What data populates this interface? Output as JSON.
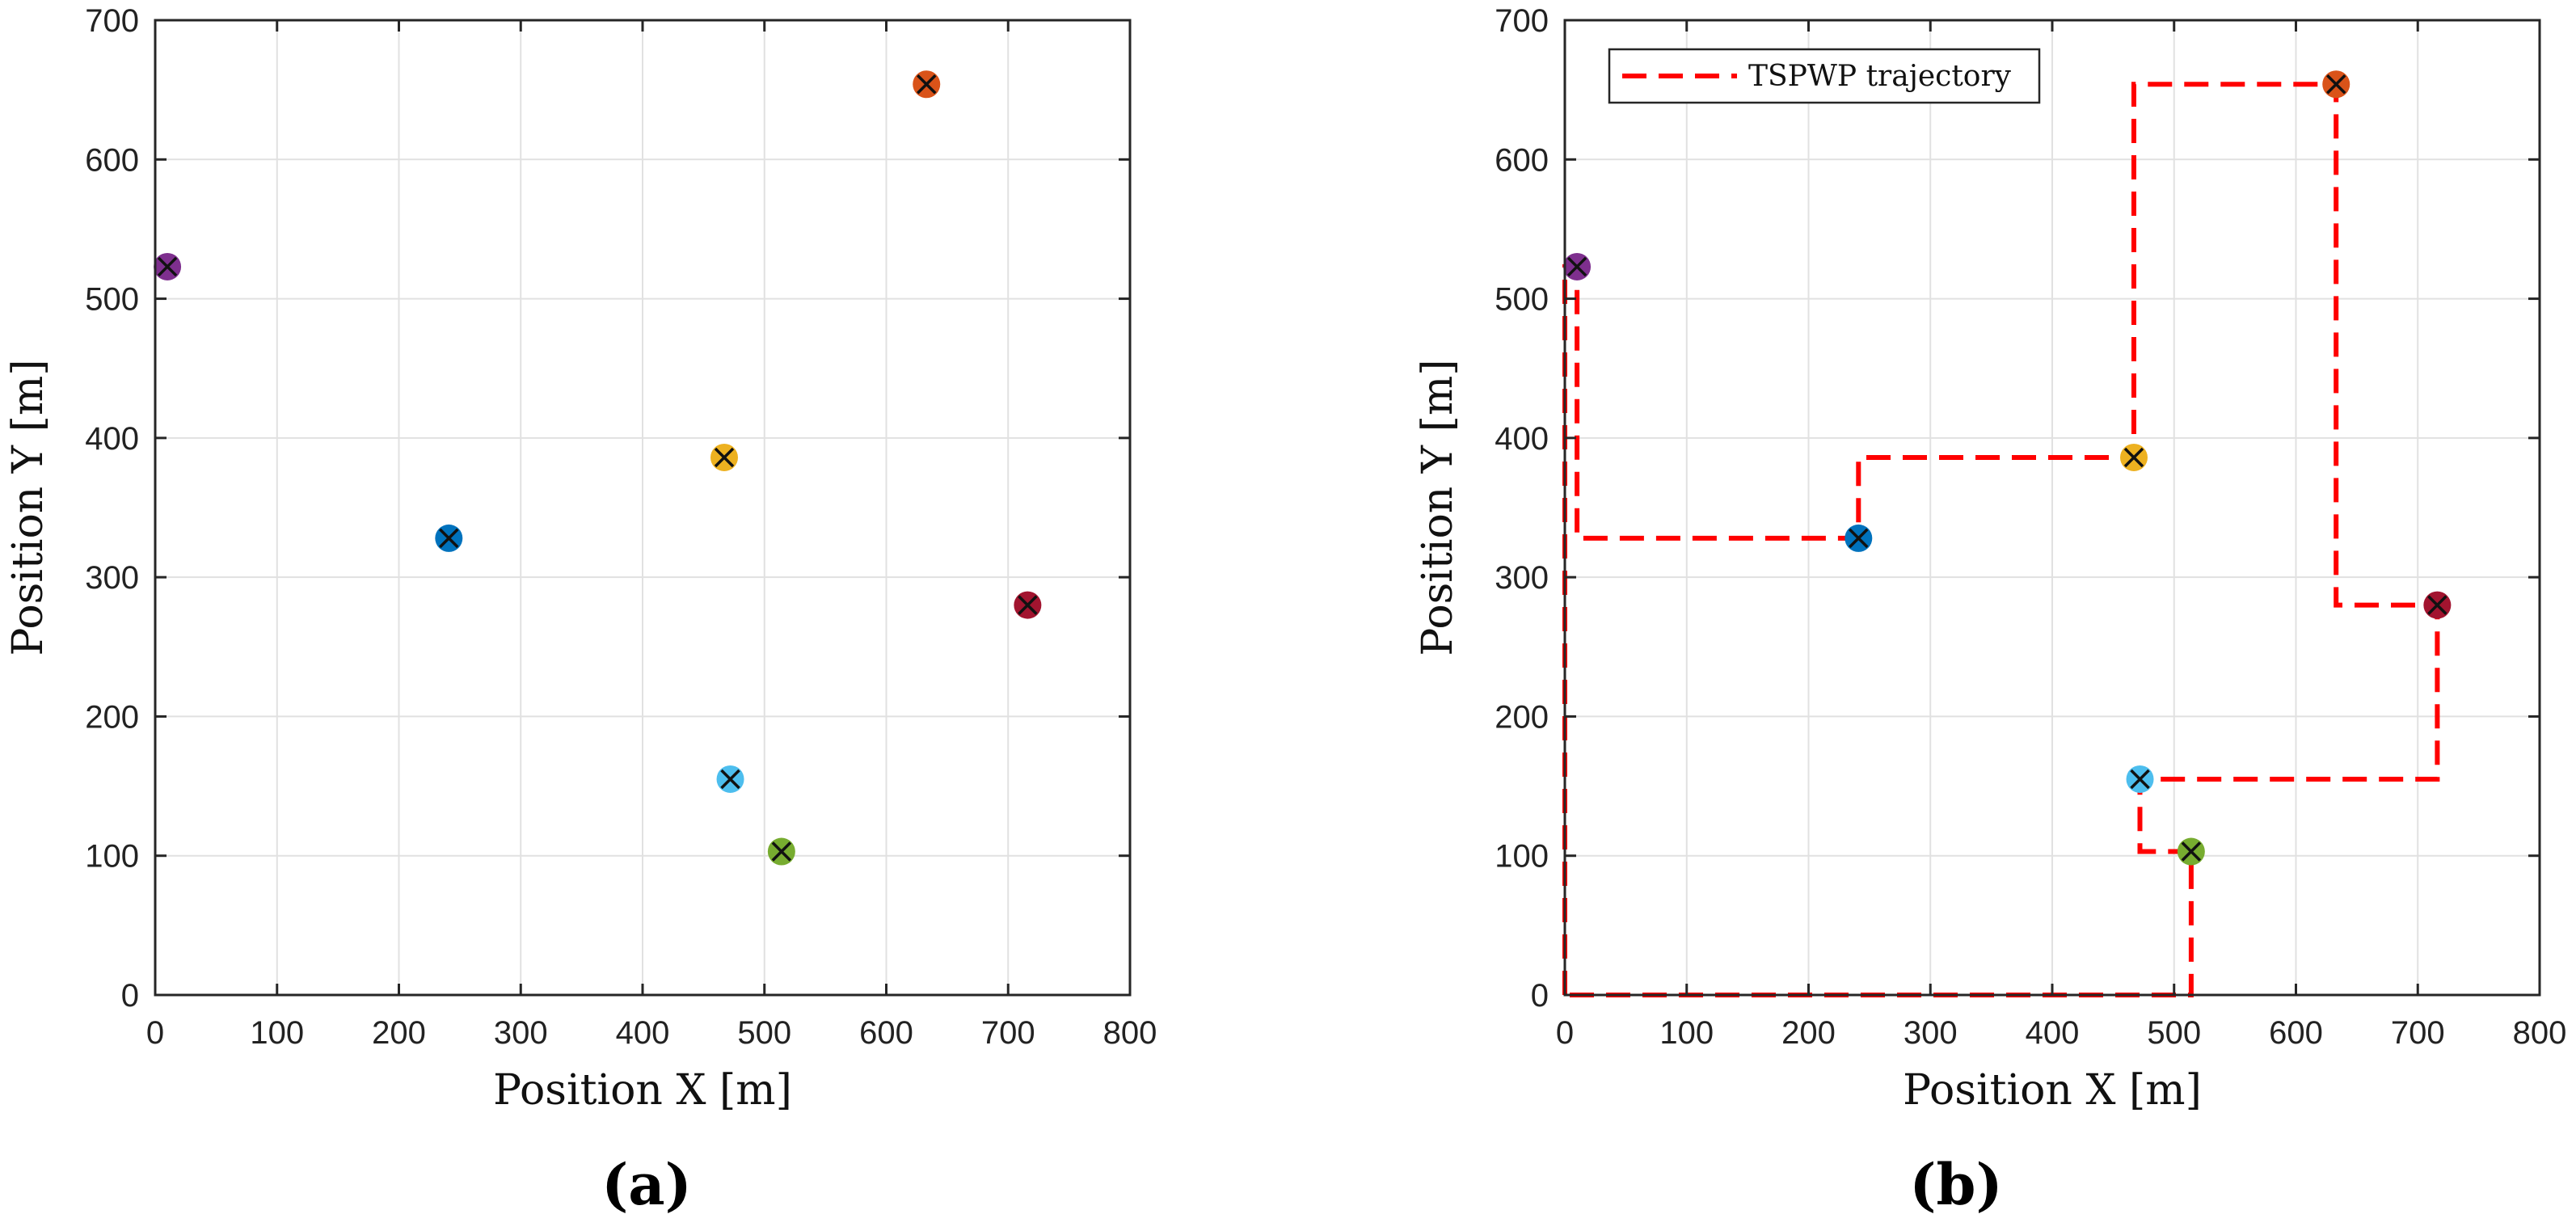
{
  "chart_data": [
    {
      "type": "scatter",
      "panel_label": "(a)",
      "title": "",
      "xlabel": "Position X [m]",
      "ylabel": "Position Y [m]",
      "xlim": [
        0,
        800
      ],
      "ylim": [
        0,
        700
      ],
      "xticks": [
        "0",
        "100",
        "200",
        "300",
        "400",
        "500",
        "600",
        "700",
        "800"
      ],
      "yticks": [
        "0",
        "100",
        "200",
        "300",
        "400",
        "500",
        "600",
        "700"
      ],
      "grid": true,
      "points": [
        {
          "x": 10,
          "y": 523,
          "color": "#7E2F8E",
          "marker": "circle-x"
        },
        {
          "x": 633,
          "y": 654,
          "color": "#D95319",
          "marker": "circle-x"
        },
        {
          "x": 467,
          "y": 386,
          "color": "#EDB120",
          "marker": "circle-x"
        },
        {
          "x": 241,
          "y": 328,
          "color": "#0072BD",
          "marker": "circle-x"
        },
        {
          "x": 716,
          "y": 280,
          "color": "#A2142F",
          "marker": "circle-x"
        },
        {
          "x": 472,
          "y": 155,
          "color": "#4DBEEE",
          "marker": "circle-x"
        },
        {
          "x": 514,
          "y": 103,
          "color": "#77AC30",
          "marker": "circle-x"
        }
      ]
    },
    {
      "type": "line",
      "panel_label": "(b)",
      "title": "",
      "xlabel": "Position X [m]",
      "ylabel": "Position Y [m]",
      "xlim": [
        0,
        800
      ],
      "ylim": [
        0,
        700
      ],
      "xticks": [
        "0",
        "100",
        "200",
        "300",
        "400",
        "500",
        "600",
        "700",
        "800"
      ],
      "yticks": [
        "0",
        "100",
        "200",
        "300",
        "400",
        "500",
        "600",
        "700"
      ],
      "grid": true,
      "legend": {
        "placement": "top-left",
        "entries": [
          "TSPWP trajectory"
        ]
      },
      "points": [
        {
          "x": 10,
          "y": 523,
          "color": "#7E2F8E",
          "marker": "circle-x"
        },
        {
          "x": 633,
          "y": 654,
          "color": "#D95319",
          "marker": "circle-x"
        },
        {
          "x": 467,
          "y": 386,
          "color": "#EDB120",
          "marker": "circle-x"
        },
        {
          "x": 241,
          "y": 328,
          "color": "#0072BD",
          "marker": "circle-x"
        },
        {
          "x": 716,
          "y": 280,
          "color": "#A2142F",
          "marker": "circle-x"
        },
        {
          "x": 472,
          "y": 155,
          "color": "#4DBEEE",
          "marker": "circle-x"
        },
        {
          "x": 514,
          "y": 103,
          "color": "#77AC30",
          "marker": "circle-x"
        }
      ],
      "series": [
        {
          "name": "TSPWP trajectory",
          "color": "#FF0000",
          "style": "dashed",
          "x": [
            0,
            0,
            10,
            10,
            241,
            241,
            467,
            467,
            633,
            633,
            716,
            716,
            472,
            472,
            514,
            514,
            0
          ],
          "y": [
            0,
            523,
            523,
            328,
            328,
            386,
            386,
            654,
            654,
            280,
            280,
            155,
            155,
            103,
            103,
            0,
            0
          ]
        }
      ]
    }
  ]
}
